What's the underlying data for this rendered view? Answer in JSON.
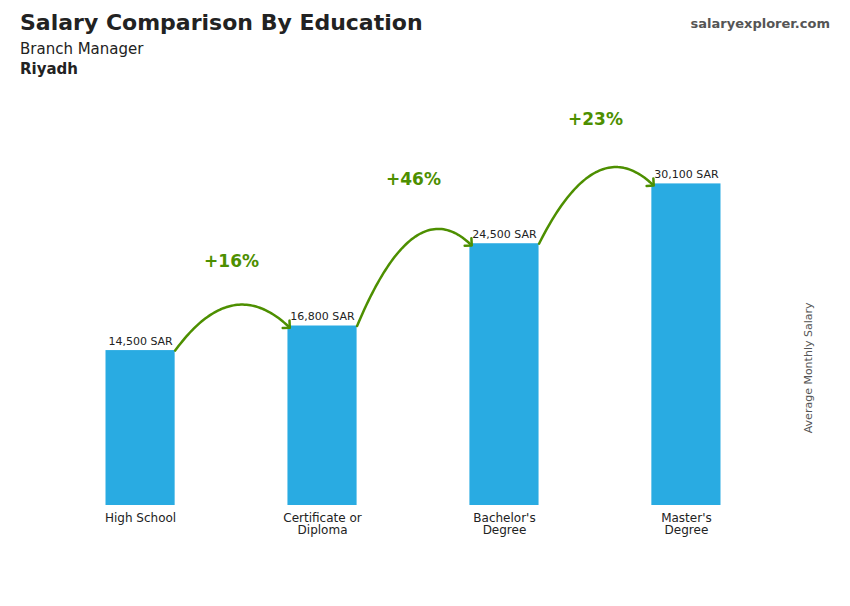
{
  "chart_data": {
    "type": "bar",
    "title": "Salary Comparison By Education",
    "subtitle": [
      "Branch Manager",
      "Riyadh"
    ],
    "caption": "salaryexplorer.com",
    "ylabel": "Average Monthly Salary",
    "categories": [
      "High School",
      "Certificate or\nDiploma",
      "Bachelor's\nDegree",
      "Master's\nDegree"
    ],
    "values": [
      14500,
      16800,
      24500,
      30100
    ],
    "value_labels": [
      "14,500 SAR",
      "16,800 SAR",
      "24,500 SAR",
      "30,100 SAR"
    ],
    "data_labels": true,
    "annotations": [
      "+16%",
      "+46%",
      "+23%"
    ],
    "color": "#29ABE2",
    "ylim": [
      0,
      38000
    ],
    "tick_labels": "x",
    "grid": false
  }
}
